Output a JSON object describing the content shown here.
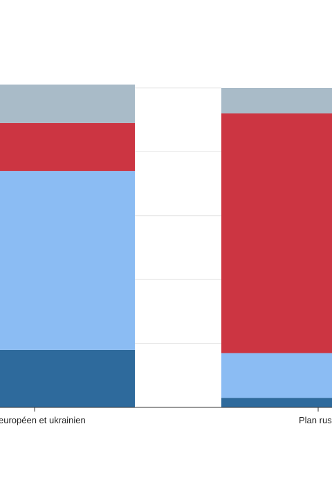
{
  "chart_data": {
    "type": "bar",
    "stacked": true,
    "orientation": "vertical",
    "categories": [
      "Plan européen et ukrainien",
      "Plan russe"
    ],
    "series": [
      {
        "color": "#2e6a9c",
        "values": [
          18,
          3
        ]
      },
      {
        "color": "#8bbcf3",
        "values": [
          56,
          14
        ]
      },
      {
        "color": "#cc3542",
        "values": [
          15,
          75
        ]
      },
      {
        "color": "#a9bbc8",
        "values": [
          12,
          8
        ]
      }
    ],
    "ylim": [
      0,
      100
    ],
    "grid": true,
    "legend": "none",
    "x_tick_labels_visible": [
      "européen et ukrainien",
      "Plan rus"
    ]
  }
}
